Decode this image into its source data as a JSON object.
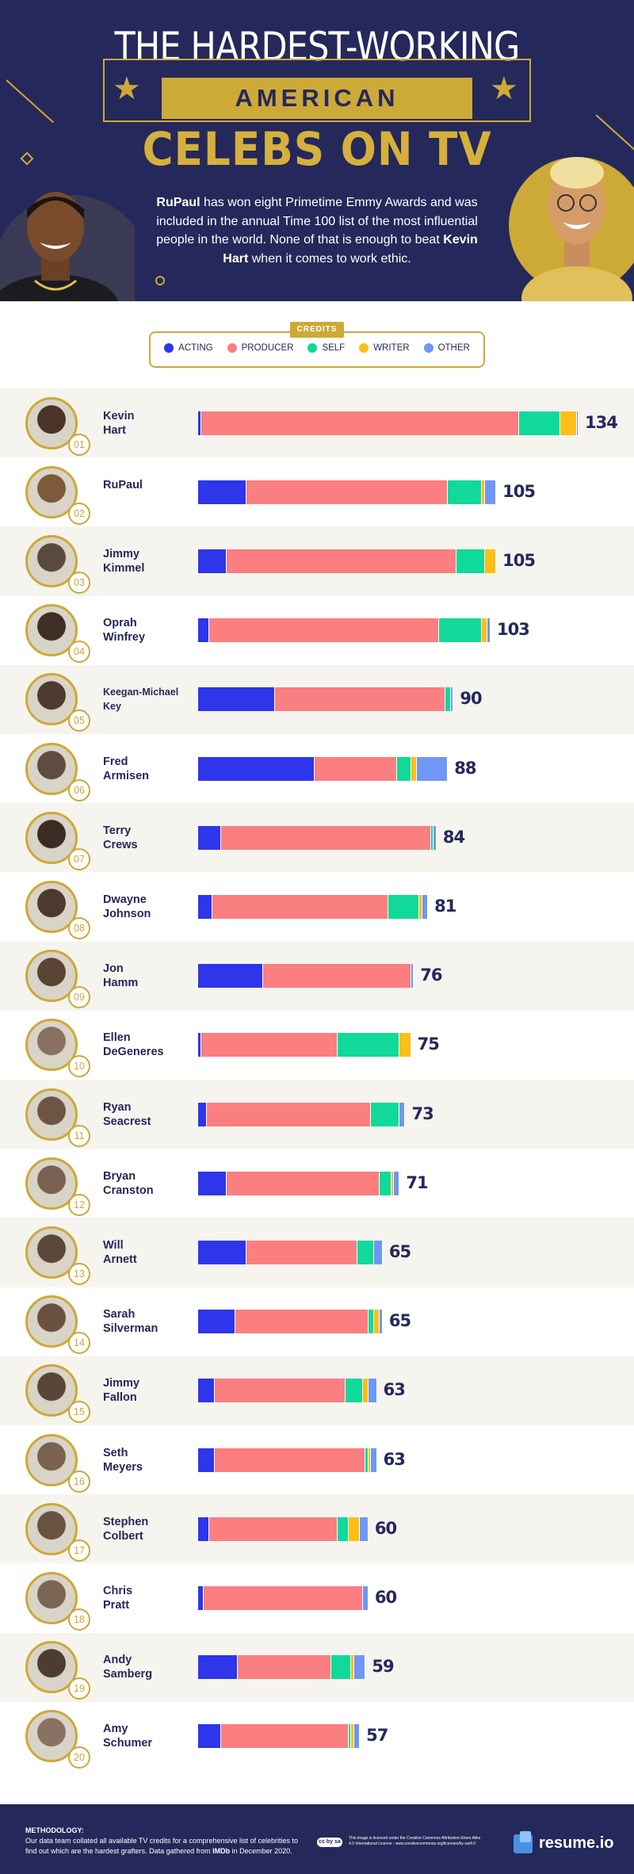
{
  "header": {
    "title_line1": "THE HARDEST-WORKING",
    "title_line2": "AMERICAN",
    "title_line3": "CELEBS ON TV",
    "intro_name1": "RuPaul",
    "intro_part1": " has won eight Primetime Emmy Awards and was included in the annual Time 100 list of the most influential people in the world. None of that is enough to beat ",
    "intro_name2": "Kevin Hart",
    "intro_part2": " when it comes to work ethic."
  },
  "legend": {
    "title": "CREDITS",
    "items": [
      {
        "label": "ACTING",
        "color": "#2f35ea"
      },
      {
        "label": "PRODUCER",
        "color": "#fb7e80"
      },
      {
        "label": "SELF",
        "color": "#10d99a"
      },
      {
        "label": "WRITER",
        "color": "#fbbf17"
      },
      {
        "label": "OTHER",
        "color": "#6f97f4"
      }
    ]
  },
  "chart_data": {
    "type": "bar",
    "stacked": true,
    "orientation": "horizontal",
    "series_names": [
      "ACTING",
      "PRODUCER",
      "SELF",
      "WRITER",
      "OTHER"
    ],
    "colors": [
      "#2f35ea",
      "#fb7e80",
      "#10d99a",
      "#fbbf17",
      "#6f97f4"
    ],
    "xlim": [
      0,
      134
    ],
    "rows": [
      {
        "rank": "01",
        "name": "Kevin Hart",
        "total": 134,
        "parts": [
          1,
          112,
          14.5,
          6,
          0.5
        ]
      },
      {
        "rank": "02",
        "name": "RuPaul",
        "total": 105,
        "parts": [
          17,
          71,
          12,
          1,
          4
        ]
      },
      {
        "rank": "03",
        "name": "Jimmy Kimmel",
        "total": 105,
        "parts": [
          10,
          81,
          10,
          4,
          0
        ]
      },
      {
        "rank": "04",
        "name": "Oprah Winfrey",
        "total": 103,
        "parts": [
          4,
          81,
          15,
          2,
          1
        ]
      },
      {
        "rank": "05",
        "name": "Keegan-Michael Key",
        "total": 90,
        "parts": [
          27,
          60,
          2,
          0,
          1
        ]
      },
      {
        "rank": "06",
        "name": "Fred Armisen",
        "total": 88,
        "parts": [
          41,
          29,
          5,
          2,
          11
        ]
      },
      {
        "rank": "07",
        "name": "Terry Crews",
        "total": 84,
        "parts": [
          8,
          74,
          1,
          0,
          1
        ]
      },
      {
        "rank": "08",
        "name": "Dwayne Johnson",
        "total": 81,
        "parts": [
          5,
          62,
          11,
          1,
          2
        ]
      },
      {
        "rank": "09",
        "name": "Jon Hamm",
        "total": 76,
        "parts": [
          23,
          52,
          0,
          0,
          1
        ]
      },
      {
        "rank": "10",
        "name": "Ellen DeGeneres",
        "total": 75,
        "parts": [
          1,
          48,
          22,
          4,
          0
        ]
      },
      {
        "rank": "11",
        "name": "Ryan Seacrest",
        "total": 73,
        "parts": [
          3,
          58,
          10,
          0,
          2
        ]
      },
      {
        "rank": "12",
        "name": "Bryan Cranston",
        "total": 71,
        "parts": [
          10,
          54,
          4,
          1,
          2
        ]
      },
      {
        "rank": "13",
        "name": "Will Arnett",
        "total": 65,
        "parts": [
          17,
          39,
          6,
          0,
          3
        ]
      },
      {
        "rank": "14",
        "name": "Sarah Silverman",
        "total": 65,
        "parts": [
          13,
          47,
          2,
          2,
          1
        ]
      },
      {
        "rank": "15",
        "name": "Jimmy Fallon",
        "total": 63,
        "parts": [
          6,
          46,
          6,
          2,
          3
        ]
      },
      {
        "rank": "16",
        "name": "Seth Meyers",
        "total": 63,
        "parts": [
          6,
          53,
          1,
          1,
          2
        ]
      },
      {
        "rank": "17",
        "name": "Stephen Colbert",
        "total": 60,
        "parts": [
          4,
          45,
          4,
          4,
          3
        ]
      },
      {
        "rank": "18",
        "name": "Chris Pratt",
        "total": 60,
        "parts": [
          2,
          56,
          0,
          0,
          2
        ]
      },
      {
        "rank": "19",
        "name": "Andy Samberg",
        "total": 59,
        "parts": [
          14,
          33,
          7,
          1,
          4
        ]
      },
      {
        "rank": "20",
        "name": "Amy Schumer",
        "total": 57,
        "parts": [
          8,
          45,
          1,
          1,
          2
        ]
      }
    ]
  },
  "footer": {
    "methodology_title": "METHODOLOGY:",
    "methodology_text_1": "Our data team collated all available TV credits for a comprehensive list of celebrities to find out which are the hardest grafters. Data gathered from ",
    "methodology_source": "IMDb",
    "methodology_text_2": " in December 2020.",
    "cc_badge": "cc by sa",
    "license_text": "This image is licensed under the Creative Commons Attribution-Share Alike 4.0 International License - www.creativecommons.org/licenses/by-sa/4.0",
    "brand": "resume.io"
  }
}
